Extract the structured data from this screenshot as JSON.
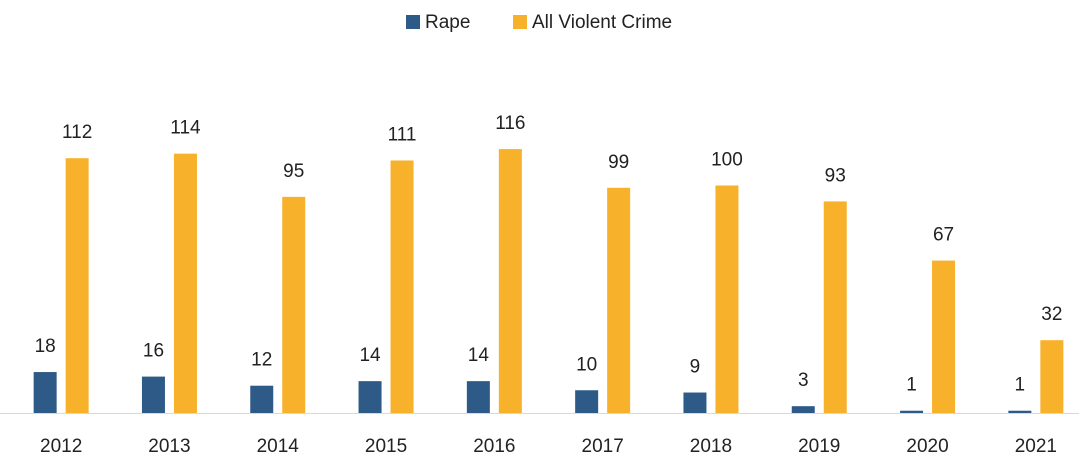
{
  "chart_data": {
    "type": "bar",
    "categories": [
      "2012",
      "2013",
      "2014",
      "2015",
      "2016",
      "2017",
      "2018",
      "2019",
      "2020",
      "2021"
    ],
    "series": [
      {
        "name": "Rape",
        "color": "#2e5a87",
        "values": [
          18,
          16,
          12,
          14,
          14,
          10,
          9,
          3,
          1,
          1
        ]
      },
      {
        "name": "All Violent Crime",
        "color": "#f7b12b",
        "values": [
          112,
          114,
          95,
          111,
          116,
          99,
          100,
          93,
          67,
          32
        ]
      }
    ],
    "ylim": [
      0,
      120
    ],
    "legend": "top",
    "data_labels": true
  }
}
